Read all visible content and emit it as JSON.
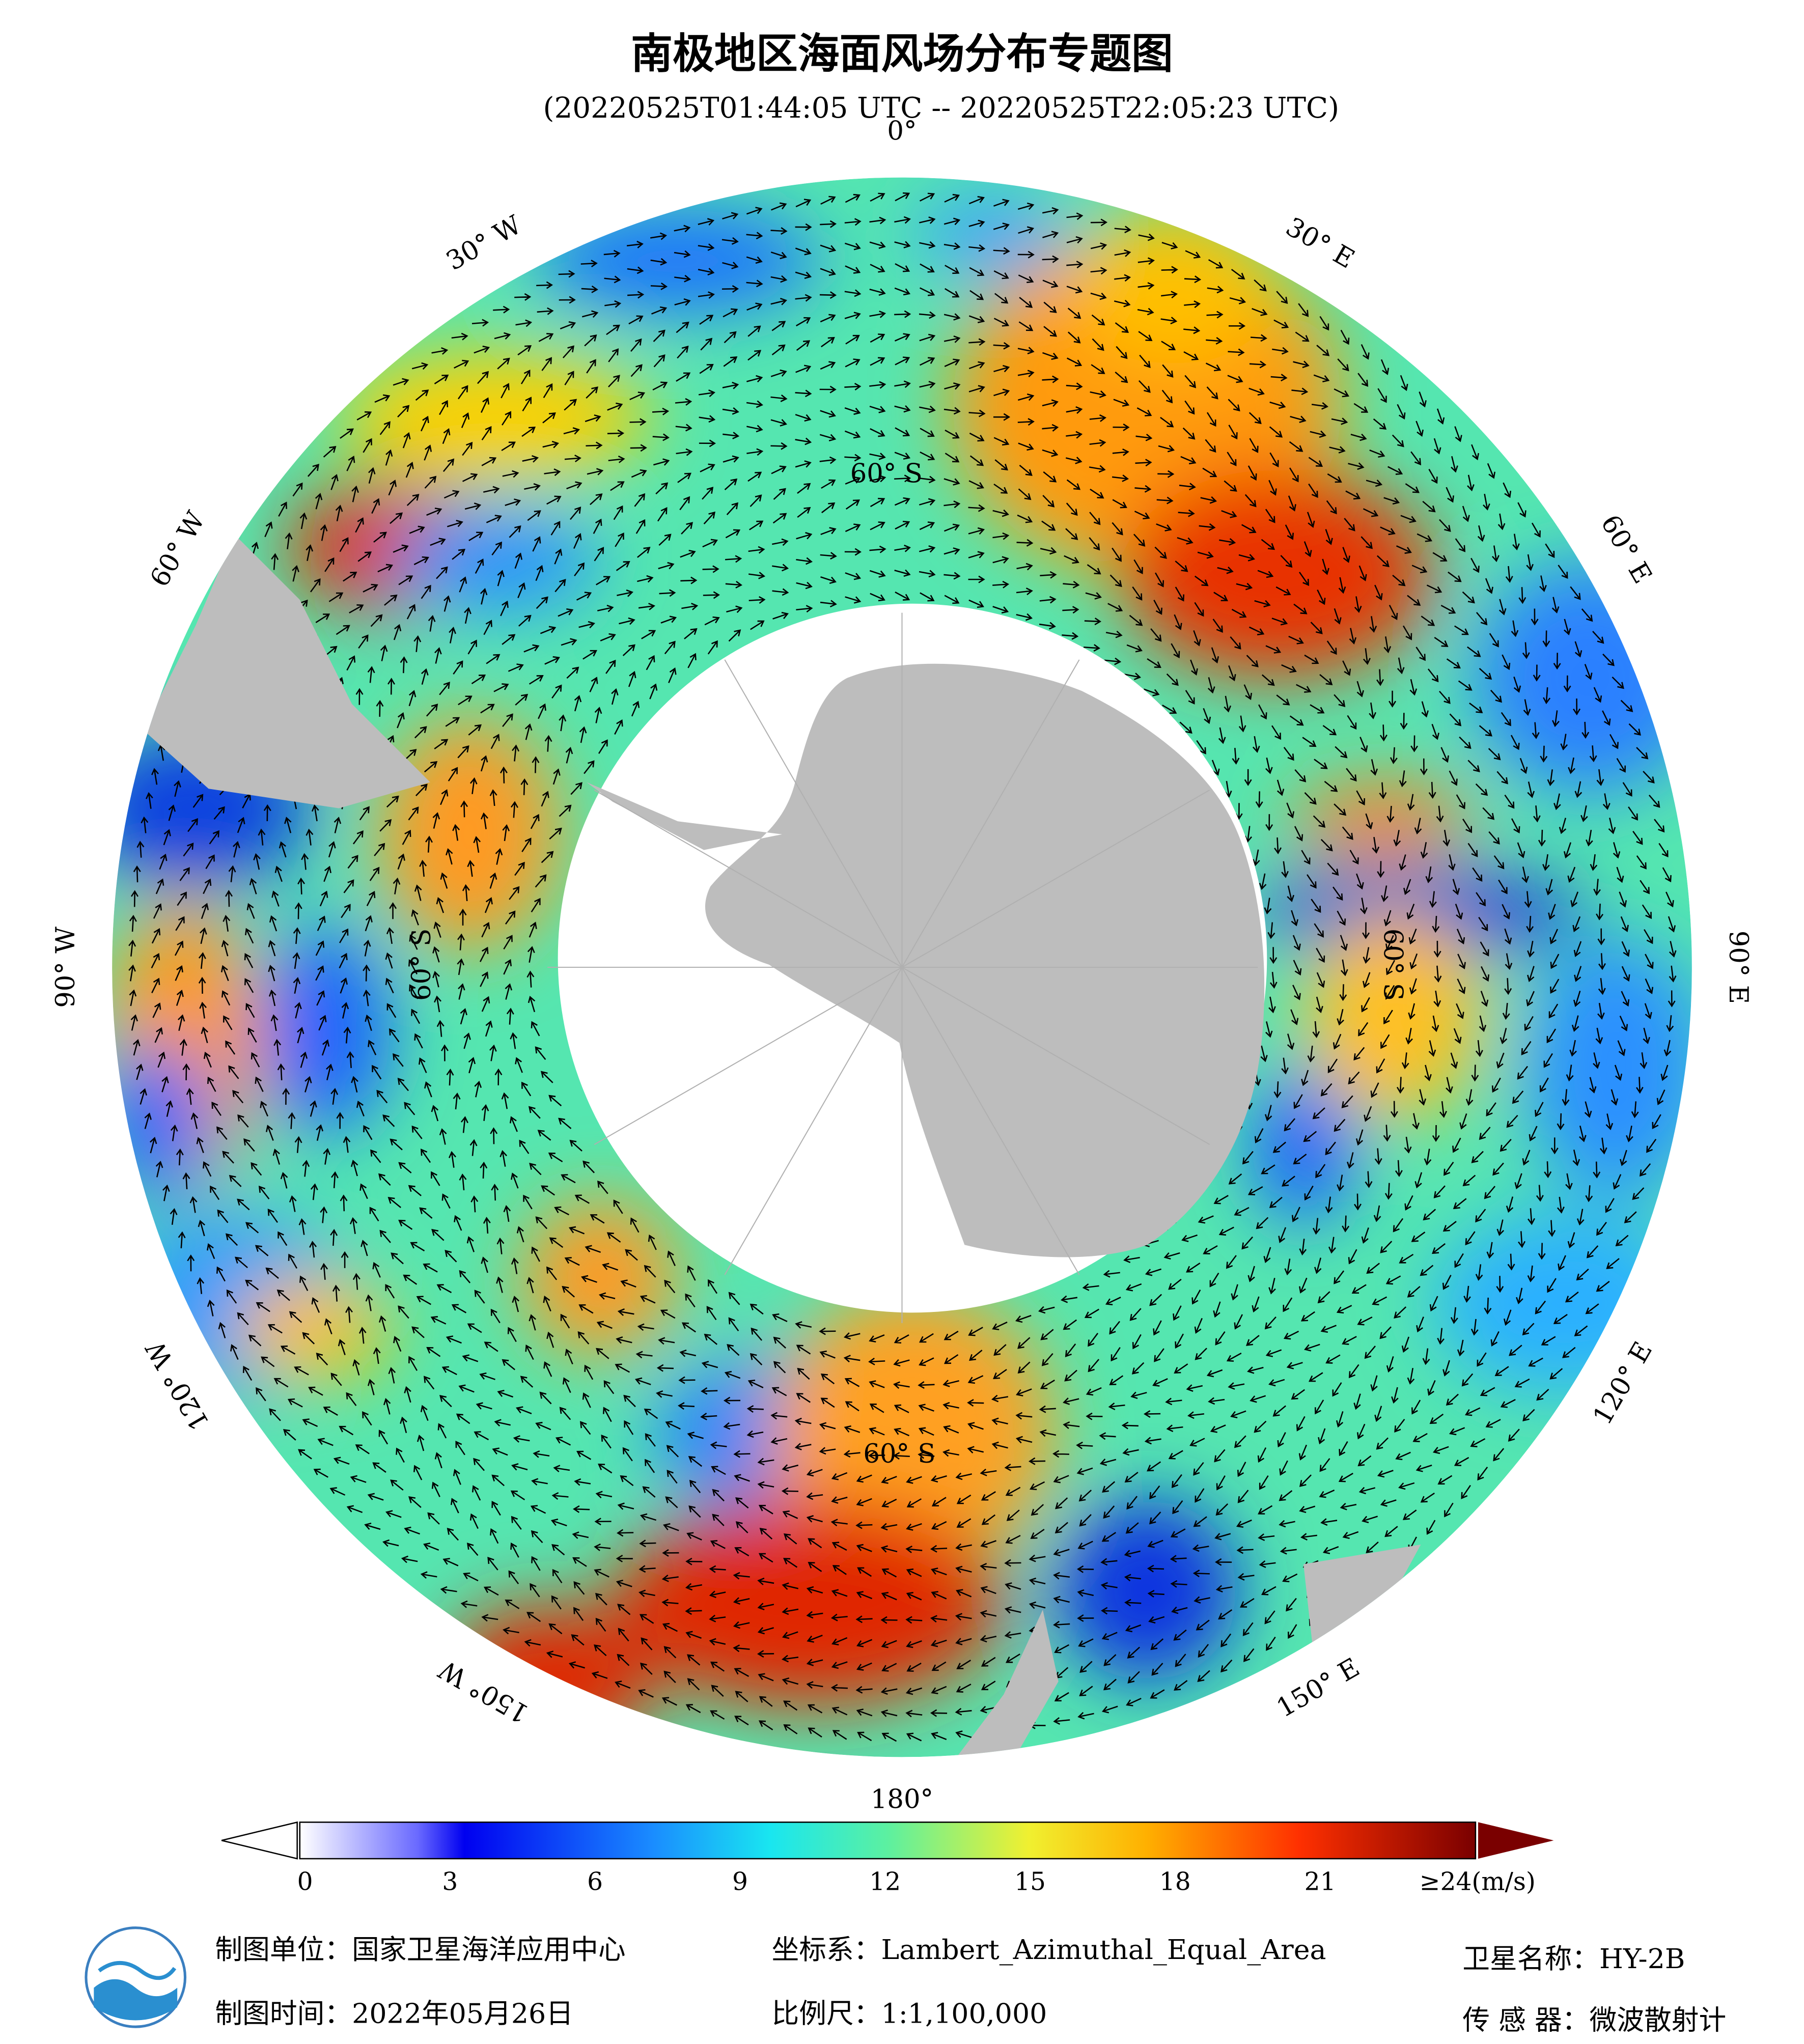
{
  "header": {
    "title": "南极地区海面风场分布专题图",
    "time_range": "(20220525T01:44:05 UTC -- 20220525T22:05:23 UTC)"
  },
  "map": {
    "longitude_labels": [
      "0°",
      "30° E",
      "60° E",
      "90° E",
      "120° E",
      "150° E",
      "180°",
      "150° W",
      "120° W",
      "90° W",
      "60° W",
      "30° W"
    ],
    "latitude_labels": [
      "60° S",
      "60° S",
      "60° S",
      "60° S"
    ]
  },
  "colorbar": {
    "range": [
      0,
      24
    ],
    "ticks": [
      0,
      3,
      6,
      9,
      12,
      15,
      18,
      21,
      {
        "value": 24,
        "label": "≥24(m/s)"
      }
    ]
  },
  "footer": {
    "producer": "制图单位：国家卫星海洋应用中心",
    "date": "制图时间：2022年05月26日",
    "projection": "坐标系：Lambert_Azimuthal_Equal_Area",
    "scale": "比例尺：1:1,100,000",
    "satellite": "卫星名称：HY-2B",
    "sensor": "传 感 器：微波散射计"
  }
}
